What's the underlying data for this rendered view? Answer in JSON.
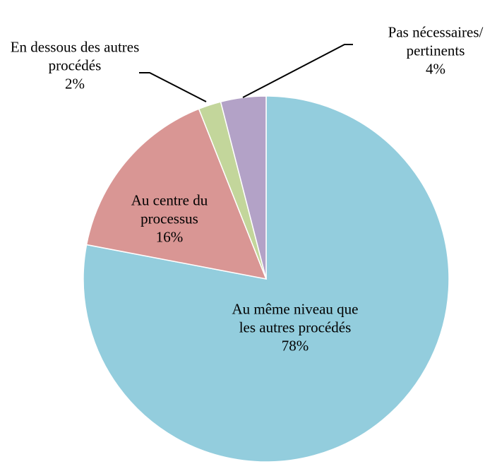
{
  "chart_data": {
    "type": "pie",
    "categories": [
      "Au même niveau que les autres procédés",
      "Au centre du processus",
      "En dessous des autres procédés",
      "Pas nécessaires/pertinents"
    ],
    "values": [
      78,
      16,
      2,
      4
    ],
    "value_labels": [
      "78%",
      "16%",
      "2%",
      "4%"
    ],
    "colors": [
      "#93cddd",
      "#d99694",
      "#c3d69b",
      "#b3a2c7"
    ],
    "start_angle": 0,
    "direction": "clockwise"
  }
}
